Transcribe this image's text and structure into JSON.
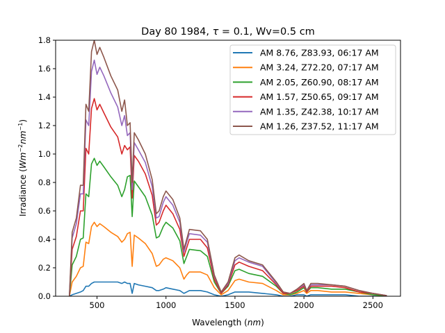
{
  "chart_data": {
    "type": "line",
    "title": {
      "prefix": "Day 80 1984, ",
      "tau_symbol": "τ",
      "tau_value": " = 0.1, Wv=0.5 cm"
    },
    "xlabel": {
      "text": "Wavelength (",
      "unit": "nm",
      "close": ")"
    },
    "ylabel": {
      "text": "Irradiance (",
      "unit_a": "Wm",
      "exp_a": "−2",
      "unit_b": "nm",
      "exp_b": "−1",
      "close": ")"
    },
    "xlim": [
      200,
      2700
    ],
    "ylim": [
      0,
      1.8
    ],
    "xticks": [
      500,
      1000,
      1500,
      2000,
      2500
    ],
    "yticks": [
      0.0,
      0.2,
      0.4,
      0.6,
      0.8,
      1.0,
      1.2,
      1.4,
      1.6,
      1.8
    ],
    "ytick_labels": [
      "0.0",
      "0.2",
      "0.4",
      "0.6",
      "0.8",
      "1.0",
      "1.2",
      "1.4",
      "1.6",
      "1.8"
    ],
    "grid": false,
    "legend_placement": "top-right",
    "x": [
      300,
      320,
      350,
      380,
      400,
      420,
      440,
      460,
      480,
      500,
      520,
      550,
      600,
      650,
      680,
      700,
      720,
      740,
      755,
      770,
      800,
      850,
      900,
      930,
      950,
      980,
      1000,
      1050,
      1100,
      1130,
      1150,
      1170,
      1250,
      1300,
      1350,
      1400,
      1450,
      1500,
      1530,
      1600,
      1700,
      1800,
      1850,
      1900,
      1950,
      2000,
      2020,
      2050,
      2100,
      2200,
      2300,
      2400,
      2500,
      2600
    ],
    "series": [
      {
        "name": "AM 8.76, Z83.93, 06:17 AM",
        "color": "#1f77b4",
        "values": [
          0,
          0.01,
          0.02,
          0.03,
          0.04,
          0.07,
          0.07,
          0.09,
          0.1,
          0.1,
          0.1,
          0.1,
          0.1,
          0.1,
          0.09,
          0.1,
          0.09,
          0.09,
          0.02,
          0.09,
          0.08,
          0.07,
          0.06,
          0.04,
          0.04,
          0.05,
          0.06,
          0.05,
          0.04,
          0.02,
          0.03,
          0.04,
          0.04,
          0.03,
          0.01,
          0.0,
          0.01,
          0.03,
          0.03,
          0.03,
          0.02,
          0.01,
          0.0,
          0.0,
          0.01,
          0.01,
          0.0,
          0.01,
          0.01,
          0.01,
          0.01,
          0.0,
          0.0,
          0.0
        ]
      },
      {
        "name": "AM 3.24, Z72.20, 07:17 AM",
        "color": "#ff7f0e",
        "values": [
          0,
          0.1,
          0.14,
          0.2,
          0.21,
          0.38,
          0.37,
          0.49,
          0.52,
          0.49,
          0.51,
          0.49,
          0.45,
          0.42,
          0.38,
          0.4,
          0.44,
          0.45,
          0.21,
          0.43,
          0.41,
          0.37,
          0.3,
          0.21,
          0.22,
          0.26,
          0.27,
          0.25,
          0.2,
          0.12,
          0.15,
          0.17,
          0.17,
          0.15,
          0.06,
          0.01,
          0.04,
          0.11,
          0.12,
          0.1,
          0.09,
          0.04,
          0.01,
          0.01,
          0.02,
          0.04,
          0.02,
          0.04,
          0.04,
          0.03,
          0.03,
          0.02,
          0.01,
          0.002
        ]
      },
      {
        "name": "AM 2.05, Z60.90, 08:17 AM",
        "color": "#2ca02c",
        "values": [
          0,
          0.22,
          0.28,
          0.4,
          0.41,
          0.72,
          0.7,
          0.93,
          0.97,
          0.92,
          0.95,
          0.91,
          0.84,
          0.78,
          0.7,
          0.75,
          0.84,
          0.85,
          0.56,
          0.81,
          0.77,
          0.7,
          0.57,
          0.41,
          0.42,
          0.49,
          0.52,
          0.48,
          0.39,
          0.23,
          0.28,
          0.33,
          0.32,
          0.28,
          0.1,
          0.02,
          0.07,
          0.18,
          0.19,
          0.16,
          0.14,
          0.07,
          0.02,
          0.01,
          0.03,
          0.06,
          0.03,
          0.06,
          0.06,
          0.05,
          0.05,
          0.03,
          0.01,
          0.003
        ]
      },
      {
        "name": "AM 1.57, Z50.65, 09:17 AM",
        "color": "#d62728",
        "values": [
          0,
          0.33,
          0.42,
          0.6,
          0.6,
          1.04,
          1.0,
          1.32,
          1.39,
          1.31,
          1.35,
          1.29,
          1.19,
          1.12,
          1.0,
          1.06,
          1.03,
          1.05,
          0.69,
          0.99,
          0.95,
          0.86,
          0.71,
          0.5,
          0.52,
          0.6,
          0.64,
          0.58,
          0.47,
          0.28,
          0.34,
          0.4,
          0.4,
          0.34,
          0.12,
          0.02,
          0.08,
          0.22,
          0.24,
          0.21,
          0.18,
          0.08,
          0.02,
          0.02,
          0.04,
          0.07,
          0.03,
          0.07,
          0.07,
          0.07,
          0.06,
          0.03,
          0.02,
          0.004
        ]
      },
      {
        "name": "AM 1.35, Z42.38, 10:17 AM",
        "color": "#9467bd",
        "values": [
          0,
          0.41,
          0.51,
          0.72,
          0.72,
          1.24,
          1.2,
          1.58,
          1.66,
          1.56,
          1.61,
          1.55,
          1.43,
          1.33,
          1.2,
          1.27,
          1.13,
          1.15,
          0.75,
          1.08,
          1.03,
          0.94,
          0.77,
          0.55,
          0.56,
          0.66,
          0.7,
          0.64,
          0.52,
          0.31,
          0.38,
          0.44,
          0.43,
          0.38,
          0.14,
          0.03,
          0.09,
          0.25,
          0.27,
          0.24,
          0.21,
          0.09,
          0.03,
          0.02,
          0.05,
          0.08,
          0.04,
          0.08,
          0.08,
          0.08,
          0.07,
          0.04,
          0.02,
          0.005
        ]
      },
      {
        "name": "AM 1.26, Z37.52, 11:17 AM",
        "color": "#8c564b",
        "values": [
          0,
          0.45,
          0.55,
          0.78,
          0.78,
          1.35,
          1.3,
          1.72,
          1.8,
          1.7,
          1.75,
          1.68,
          1.55,
          1.45,
          1.3,
          1.38,
          1.2,
          1.22,
          0.8,
          1.15,
          1.1,
          1.0,
          0.82,
          0.58,
          0.6,
          0.7,
          0.74,
          0.68,
          0.55,
          0.33,
          0.4,
          0.47,
          0.46,
          0.4,
          0.15,
          0.03,
          0.1,
          0.27,
          0.29,
          0.25,
          0.22,
          0.1,
          0.03,
          0.02,
          0.05,
          0.09,
          0.04,
          0.09,
          0.09,
          0.08,
          0.07,
          0.04,
          0.02,
          0.005
        ]
      }
    ]
  }
}
